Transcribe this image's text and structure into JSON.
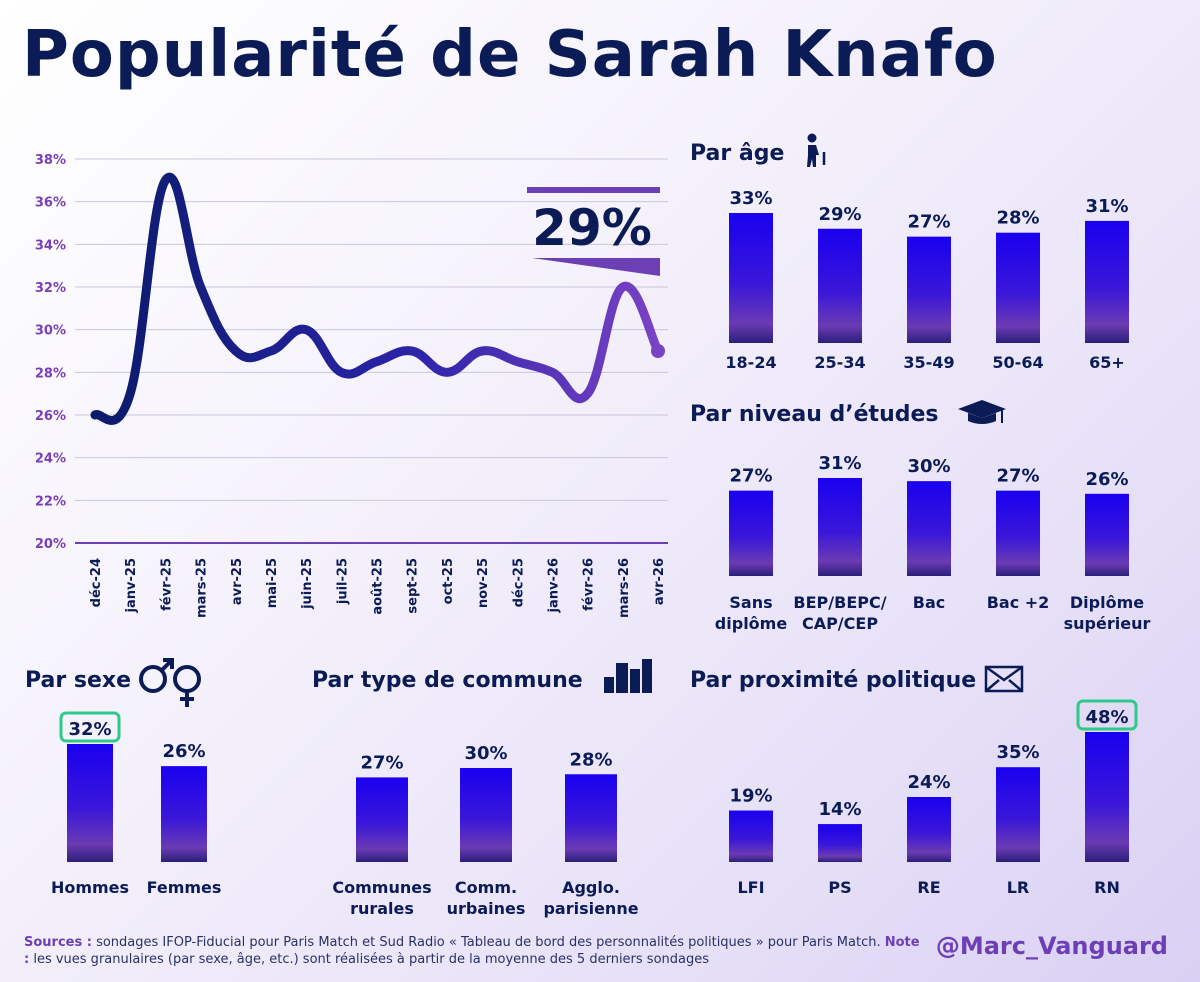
{
  "title": "Popularité de Sarah Knafo",
  "footer": {
    "sources_label": "Sources :",
    "sources_text": " sondages IFOP-Fiducial pour Paris Match et Sud Radio  « Tableau de bord des personnalités politiques » pour Paris Match.",
    "note_label": "Note :",
    "note_text": " les vues granulaires (par sexe, âge, etc.) sont réalisées à partir de la moyenne des 5 derniers sondages"
  },
  "handle": "@Marc_Vanguard",
  "colors": {
    "dark_navy": "#0b1b55",
    "purple": "#6d3fb5",
    "bar_blue": "#1a00f0",
    "bar_purple": "#6a3bb3",
    "highlight": "#2fc98a",
    "line_cyan": "#45c6e0"
  },
  "chart_data": [
    {
      "type": "line",
      "id": "trend",
      "x": [
        "déc-24",
        "janv-25",
        "févr-25",
        "mars-25",
        "avr-25",
        "mai-25",
        "juin-25",
        "juil-25",
        "août-25",
        "sept-25",
        "oct-25",
        "nov-25",
        "déc-25",
        "janv-26",
        "févr-26",
        "mars-26",
        "avr-26"
      ],
      "y": [
        26,
        27,
        37,
        32,
        29,
        29,
        30,
        28,
        28.5,
        29,
        28,
        29,
        28.5,
        28,
        27,
        32,
        29
      ],
      "ylim": [
        20,
        38
      ],
      "yticks": [
        "20%",
        "22%",
        "24%",
        "26%",
        "28%",
        "30%",
        "32%",
        "34%",
        "36%",
        "38%"
      ],
      "callout": "29%",
      "grid": true
    },
    {
      "type": "bar",
      "id": "age",
      "title": "Par âge",
      "icon": "elderly-person-icon",
      "categories": [
        [
          "18-24"
        ],
        [
          "25-34"
        ],
        [
          "35-49"
        ],
        [
          "50-64"
        ],
        [
          "65+"
        ]
      ],
      "values": [
        33,
        29,
        27,
        28,
        31
      ],
      "labels": [
        "33%",
        "29%",
        "27%",
        "28%",
        "31%"
      ]
    },
    {
      "type": "bar",
      "id": "education",
      "title": "Par niveau d’études",
      "icon": "graduation-cap-icon",
      "categories": [
        [
          "Sans",
          "diplôme"
        ],
        [
          "BEP/BEPC/",
          "CAP/CEP"
        ],
        [
          "Bac"
        ],
        [
          "Bac +2"
        ],
        [
          "Diplôme",
          "supérieur"
        ]
      ],
      "values": [
        27,
        31,
        30,
        27,
        26
      ],
      "labels": [
        "27%",
        "31%",
        "30%",
        "27%",
        "26%"
      ]
    },
    {
      "type": "bar",
      "id": "sex",
      "title": "Par sexe",
      "icon": "gender-symbols-icon",
      "categories": [
        [
          "Hommes"
        ],
        [
          "Femmes"
        ]
      ],
      "values": [
        32,
        26
      ],
      "labels": [
        "32%",
        "26%"
      ],
      "highlight": 0
    },
    {
      "type": "bar",
      "id": "commune",
      "title": "Par type de commune",
      "icon": "city-buildings-icon",
      "categories": [
        [
          "Communes",
          "rurales"
        ],
        [
          "Comm.",
          "urbaines"
        ],
        [
          "Agglo.",
          "parisienne"
        ]
      ],
      "values": [
        27,
        30,
        28
      ],
      "labels": [
        "27%",
        "30%",
        "28%"
      ]
    },
    {
      "type": "bar",
      "id": "politics",
      "title": "Par proximité politique",
      "icon": "ballot-envelope-icon",
      "categories": [
        [
          "LFI"
        ],
        [
          "PS"
        ],
        [
          "RE"
        ],
        [
          "LR"
        ],
        [
          "RN"
        ]
      ],
      "values": [
        19,
        14,
        24,
        35,
        48
      ],
      "labels": [
        "19%",
        "14%",
        "24%",
        "35%",
        "48%"
      ],
      "highlight": 4
    }
  ]
}
